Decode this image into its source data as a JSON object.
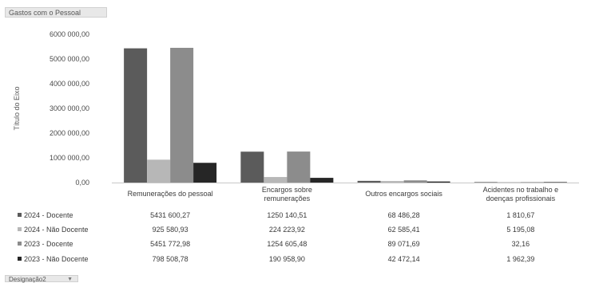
{
  "chart_title": "Gastos com o Pessoal",
  "filter_button_label": "Designação2",
  "filter_arrow_icon": "chevron-down-icon",
  "chart_data": {
    "type": "bar",
    "title": "Gastos com o Pessoal",
    "xlabel": "",
    "ylabel": "Título do Eixo",
    "ylim": [
      0,
      6000000
    ],
    "yticks": [
      0,
      1000000,
      2000000,
      3000000,
      4000000,
      5000000,
      6000000
    ],
    "ytick_labels": [
      "0,00",
      "1000 000,00",
      "2000 000,00",
      "3000 000,00",
      "4000 000,00",
      "5000 000,00",
      "6000 000,00"
    ],
    "categories": [
      "Remunerações do pessoal",
      "Encargos sobre remunerações",
      "Outros encargos sociais",
      "Acidentes no trabalho e doenças profissionais"
    ],
    "series": [
      {
        "name": "2024 - Docente",
        "color": "#5b5b5b",
        "values": [
          5431600.27,
          1250140.51,
          68486.28,
          1810.67
        ],
        "labels": [
          "5431 600,27",
          "1250 140,51",
          "68 486,28",
          "1 810,67"
        ]
      },
      {
        "name": "2024 - Não Docente",
        "color": "#b7b7b7",
        "values": [
          925580.93,
          224223.92,
          62585.41,
          5195.08
        ],
        "labels": [
          "925 580,93",
          "224 223,92",
          "62 585,41",
          "5 195,08"
        ]
      },
      {
        "name": "2023 - Docente",
        "color": "#8c8c8c",
        "values": [
          5451772.98,
          1254605.48,
          89071.69,
          32.16
        ],
        "labels": [
          "5451 772,98",
          "1254 605,48",
          "89 071,69",
          "32,16"
        ]
      },
      {
        "name": "2023 - Não Docente",
        "color": "#262626",
        "values": [
          798508.78,
          190958.9,
          42472.14,
          1962.39
        ],
        "labels": [
          "798 508,78",
          "190 958,90",
          "42 472,14",
          "1 962,39"
        ]
      }
    ],
    "grid": false,
    "legend": "data-table"
  }
}
